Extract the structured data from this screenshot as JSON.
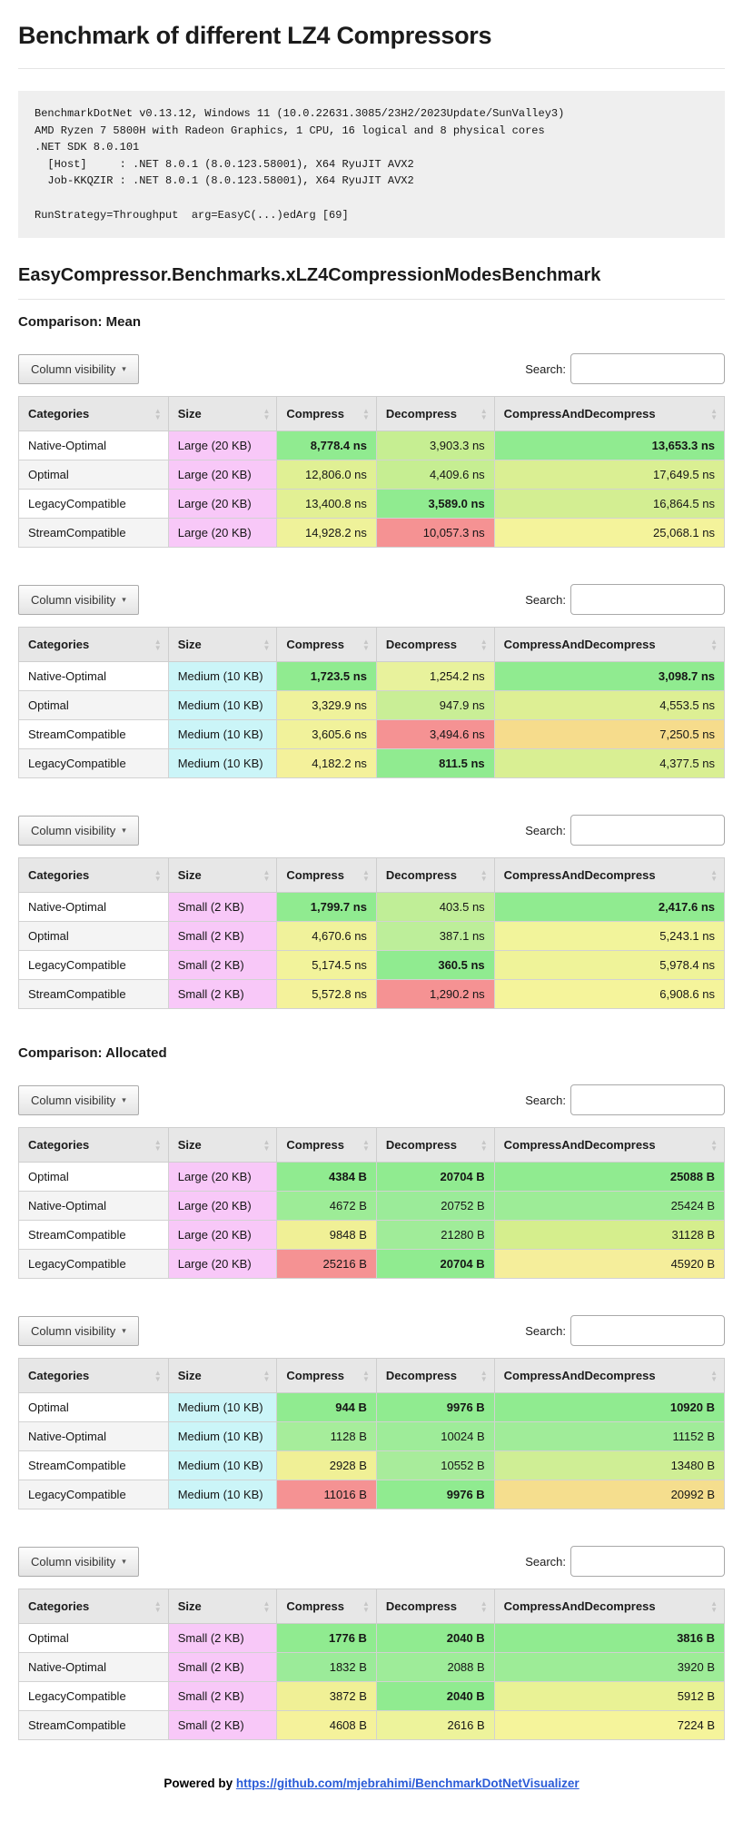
{
  "page": {
    "title": "Benchmark of different LZ4 Compressors",
    "env_info": "BenchmarkDotNet v0.13.12, Windows 11 (10.0.22631.3085/23H2/2023Update/SunValley3)\nAMD Ryzen 7 5800H with Radeon Graphics, 1 CPU, 16 logical and 8 physical cores\n.NET SDK 8.0.101\n  [Host]     : .NET 8.0.1 (8.0.123.58001), X64 RyuJIT AVX2\n  Job-KKQZIR : .NET 8.0.1 (8.0.123.58001), X64 RyuJIT AVX2\n\nRunStrategy=Throughput  arg=EasyC(...)edArg [69]",
    "benchmark_name": "EasyCompressor.Benchmarks.xLZ4CompressionModesBenchmark",
    "footer": {
      "powered_by": "Powered by",
      "link": "https://github.com/mjebrahimi/BenchmarkDotNetVisualizer"
    }
  },
  "controls": {
    "column_visibility_label": "Column visibility",
    "caret_icon": "▾",
    "sort_up_icon": "▲",
    "sort_down_icon": "▼",
    "search_label": "Search:",
    "search_value": "",
    "search_placeholder": ""
  },
  "palette": {
    "best_green": "#90EB90",
    "worst_red": "#F59293",
    "size_pink": "#F8C8F8",
    "size_cyan": "#CBF5F8",
    "link_blue": "#2a5bd7"
  },
  "columns": [
    "Categories",
    "Size",
    "Compress",
    "Decompress",
    "CompressAndDecompress"
  ],
  "sections": [
    {
      "heading": "Comparison: Mean",
      "tables": [
        {
          "rows": [
            {
              "category": "Native-Optimal",
              "size": "Large (20 KB)",
              "size_bg": "#F8C8F8",
              "cells": [
                {
                  "v": "8,778.4 ns",
                  "bg": "#90EB90",
                  "bold": true
                },
                {
                  "v": "3,903.3 ns",
                  "bg": "#C6EE92",
                  "bold": false
                },
                {
                  "v": "13,653.3 ns",
                  "bg": "#90EB90",
                  "bold": true
                }
              ]
            },
            {
              "category": "Optimal",
              "size": "Large (20 KB)",
              "size_bg": "#F8C8F8",
              "cells": [
                {
                  "v": "12,806.0 ns",
                  "bg": "#E0F094",
                  "bold": false
                },
                {
                  "v": "4,409.6 ns",
                  "bg": "#C6EE92",
                  "bold": false
                },
                {
                  "v": "17,649.5 ns",
                  "bg": "#DAEF93",
                  "bold": false
                }
              ]
            },
            {
              "category": "LegacyCompatible",
              "size": "Large (20 KB)",
              "size_bg": "#F8C8F8",
              "cells": [
                {
                  "v": "13,400.8 ns",
                  "bg": "#E2F094",
                  "bold": false
                },
                {
                  "v": "3,589.0 ns",
                  "bg": "#90EB90",
                  "bold": true
                },
                {
                  "v": "16,864.5 ns",
                  "bg": "#D3EE92",
                  "bold": false
                }
              ]
            },
            {
              "category": "StreamCompatible",
              "size": "Large (20 KB)",
              "size_bg": "#F8C8F8",
              "cells": [
                {
                  "v": "14,928.2 ns",
                  "bg": "#EFF29A",
                  "bold": false
                },
                {
                  "v": "10,057.3 ns",
                  "bg": "#F59293",
                  "bold": false
                },
                {
                  "v": "25,068.1 ns",
                  "bg": "#F4F39B",
                  "bold": false
                }
              ]
            }
          ]
        },
        {
          "rows": [
            {
              "category": "Native-Optimal",
              "size": "Medium (10 KB)",
              "size_bg": "#CBF5F8",
              "cells": [
                {
                  "v": "1,723.5 ns",
                  "bg": "#90EB90",
                  "bold": true
                },
                {
                  "v": "1,254.2 ns",
                  "bg": "#E8F29C",
                  "bold": false
                },
                {
                  "v": "3,098.7 ns",
                  "bg": "#90EB90",
                  "bold": true
                }
              ]
            },
            {
              "category": "Optimal",
              "size": "Medium (10 KB)",
              "size_bg": "#CBF5F8",
              "cells": [
                {
                  "v": "3,329.9 ns",
                  "bg": "#EFF29B",
                  "bold": false
                },
                {
                  "v": "947.9 ns",
                  "bg": "#C9EE96",
                  "bold": false
                },
                {
                  "v": "4,553.5 ns",
                  "bg": "#DDEF94",
                  "bold": false
                }
              ]
            },
            {
              "category": "StreamCompatible",
              "size": "Medium (10 KB)",
              "size_bg": "#CBF5F8",
              "cells": [
                {
                  "v": "3,605.6 ns",
                  "bg": "#F1F29B",
                  "bold": false
                },
                {
                  "v": "3,494.6 ns",
                  "bg": "#F59293",
                  "bold": false
                },
                {
                  "v": "7,250.5 ns",
                  "bg": "#F6DC8C",
                  "bold": false
                }
              ]
            },
            {
              "category": "LegacyCompatible",
              "size": "Medium (10 KB)",
              "size_bg": "#CBF5F8",
              "cells": [
                {
                  "v": "4,182.2 ns",
                  "bg": "#F4F19B",
                  "bold": false
                },
                {
                  "v": "811.5 ns",
                  "bg": "#90EB90",
                  "bold": true
                },
                {
                  "v": "4,377.5 ns",
                  "bg": "#D9EF93",
                  "bold": false
                }
              ]
            }
          ]
        },
        {
          "rows": [
            {
              "category": "Native-Optimal",
              "size": "Small (2 KB)",
              "size_bg": "#F8C8F8",
              "cells": [
                {
                  "v": "1,799.7 ns",
                  "bg": "#90EB90",
                  "bold": true
                },
                {
                  "v": "403.5 ns",
                  "bg": "#C0EE97",
                  "bold": false
                },
                {
                  "v": "2,417.6 ns",
                  "bg": "#90EB90",
                  "bold": true
                }
              ]
            },
            {
              "category": "Optimal",
              "size": "Small (2 KB)",
              "size_bg": "#F8C8F8",
              "cells": [
                {
                  "v": "4,670.6 ns",
                  "bg": "#F0F29B",
                  "bold": false
                },
                {
                  "v": "387.1 ns",
                  "bg": "#BDEE9A",
                  "bold": false
                },
                {
                  "v": "5,243.1 ns",
                  "bg": "#F2F49B",
                  "bold": false
                }
              ]
            },
            {
              "category": "LegacyCompatible",
              "size": "Small (2 KB)",
              "size_bg": "#F8C8F8",
              "cells": [
                {
                  "v": "5,174.5 ns",
                  "bg": "#F2F39B",
                  "bold": false
                },
                {
                  "v": "360.5 ns",
                  "bg": "#90EB90",
                  "bold": true
                },
                {
                  "v": "5,978.4 ns",
                  "bg": "#EFF399",
                  "bold": false
                }
              ]
            },
            {
              "category": "StreamCompatible",
              "size": "Small (2 KB)",
              "size_bg": "#F8C8F8",
              "cells": [
                {
                  "v": "5,572.8 ns",
                  "bg": "#F4F29B",
                  "bold": false
                },
                {
                  "v": "1,290.2 ns",
                  "bg": "#F59293",
                  "bold": false
                },
                {
                  "v": "6,908.6 ns",
                  "bg": "#F5F49B",
                  "bold": false
                }
              ]
            }
          ]
        }
      ]
    },
    {
      "heading": "Comparison: Allocated",
      "tables": [
        {
          "rows": [
            {
              "category": "Optimal",
              "size": "Large (20 KB)",
              "size_bg": "#F8C8F8",
              "cells": [
                {
                  "v": "4384 B",
                  "bg": "#90EB90",
                  "bold": true
                },
                {
                  "v": "20704 B",
                  "bg": "#90EB90",
                  "bold": true
                },
                {
                  "v": "25088 B",
                  "bg": "#90EB90",
                  "bold": true
                }
              ]
            },
            {
              "category": "Native-Optimal",
              "size": "Large (20 KB)",
              "size_bg": "#F8C8F8",
              "cells": [
                {
                  "v": "4672 B",
                  "bg": "#9DEC97",
                  "bold": false
                },
                {
                  "v": "20752 B",
                  "bg": "#9BEB99",
                  "bold": false
                },
                {
                  "v": "25424 B",
                  "bg": "#9DEC97",
                  "bold": false
                }
              ]
            },
            {
              "category": "StreamCompatible",
              "size": "Large (20 KB)",
              "size_bg": "#F8C8F8",
              "cells": [
                {
                  "v": "9848 B",
                  "bg": "#F0F096",
                  "bold": false
                },
                {
                  "v": "21280 B",
                  "bg": "#A0EC99",
                  "bold": false
                },
                {
                  "v": "31128 B",
                  "bg": "#D5EE8D",
                  "bold": false
                }
              ]
            },
            {
              "category": "LegacyCompatible",
              "size": "Large (20 KB)",
              "size_bg": "#F8C8F8",
              "cells": [
                {
                  "v": "25216 B",
                  "bg": "#F59293",
                  "bold": false
                },
                {
                  "v": "20704 B",
                  "bg": "#90EB90",
                  "bold": true
                },
                {
                  "v": "45920 B",
                  "bg": "#F5EE9B",
                  "bold": false
                }
              ]
            }
          ]
        },
        {
          "rows": [
            {
              "category": "Optimal",
              "size": "Medium (10 KB)",
              "size_bg": "#CBF5F8",
              "cells": [
                {
                  "v": "944 B",
                  "bg": "#90EB90",
                  "bold": true
                },
                {
                  "v": "9976 B",
                  "bg": "#90EB90",
                  "bold": true
                },
                {
                  "v": "10920 B",
                  "bg": "#90EB90",
                  "bold": true
                }
              ]
            },
            {
              "category": "Native-Optimal",
              "size": "Medium (10 KB)",
              "size_bg": "#CBF5F8",
              "cells": [
                {
                  "v": "1128 B",
                  "bg": "#A6ED9B",
                  "bold": false
                },
                {
                  "v": "10024 B",
                  "bg": "#9EEC99",
                  "bold": false
                },
                {
                  "v": "11152 B",
                  "bg": "#A0EC99",
                  "bold": false
                }
              ]
            },
            {
              "category": "StreamCompatible",
              "size": "Medium (10 KB)",
              "size_bg": "#CBF5F8",
              "cells": [
                {
                  "v": "2928 B",
                  "bg": "#F0F096",
                  "bold": false
                },
                {
                  "v": "10552 B",
                  "bg": "#A8EC9B",
                  "bold": false
                },
                {
                  "v": "13480 B",
                  "bg": "#CFEE95",
                  "bold": false
                }
              ]
            },
            {
              "category": "LegacyCompatible",
              "size": "Medium (10 KB)",
              "size_bg": "#CBF5F8",
              "cells": [
                {
                  "v": "11016 B",
                  "bg": "#F59293",
                  "bold": false
                },
                {
                  "v": "9976 B",
                  "bg": "#90EB90",
                  "bold": true
                },
                {
                  "v": "20992 B",
                  "bg": "#F5DE8E",
                  "bold": false
                }
              ]
            }
          ]
        },
        {
          "rows": [
            {
              "category": "Optimal",
              "size": "Small (2 KB)",
              "size_bg": "#F8C8F8",
              "cells": [
                {
                  "v": "1776 B",
                  "bg": "#90EB90",
                  "bold": true
                },
                {
                  "v": "2040 B",
                  "bg": "#90EB90",
                  "bold": true
                },
                {
                  "v": "3816 B",
                  "bg": "#90EB90",
                  "bold": true
                }
              ]
            },
            {
              "category": "Native-Optimal",
              "size": "Small (2 KB)",
              "size_bg": "#F8C8F8",
              "cells": [
                {
                  "v": "1832 B",
                  "bg": "#9BEB99",
                  "bold": false
                },
                {
                  "v": "2088 B",
                  "bg": "#9EEC99",
                  "bold": false
                },
                {
                  "v": "3920 B",
                  "bg": "#9DEC97",
                  "bold": false
                }
              ]
            },
            {
              "category": "LegacyCompatible",
              "size": "Small (2 KB)",
              "size_bg": "#F8C8F8",
              "cells": [
                {
                  "v": "3872 B",
                  "bg": "#F0F096",
                  "bold": false
                },
                {
                  "v": "2040 B",
                  "bg": "#90EB90",
                  "bold": true
                },
                {
                  "v": "5912 B",
                  "bg": "#E9F295",
                  "bold": false
                }
              ]
            },
            {
              "category": "StreamCompatible",
              "size": "Small (2 KB)",
              "size_bg": "#F8C8F8",
              "cells": [
                {
                  "v": "4608 B",
                  "bg": "#F5F29B",
                  "bold": false
                },
                {
                  "v": "2616 B",
                  "bg": "#EDF39B",
                  "bold": false
                },
                {
                  "v": "7224 B",
                  "bg": "#F5F49B",
                  "bold": false
                }
              ]
            }
          ]
        }
      ]
    }
  ]
}
